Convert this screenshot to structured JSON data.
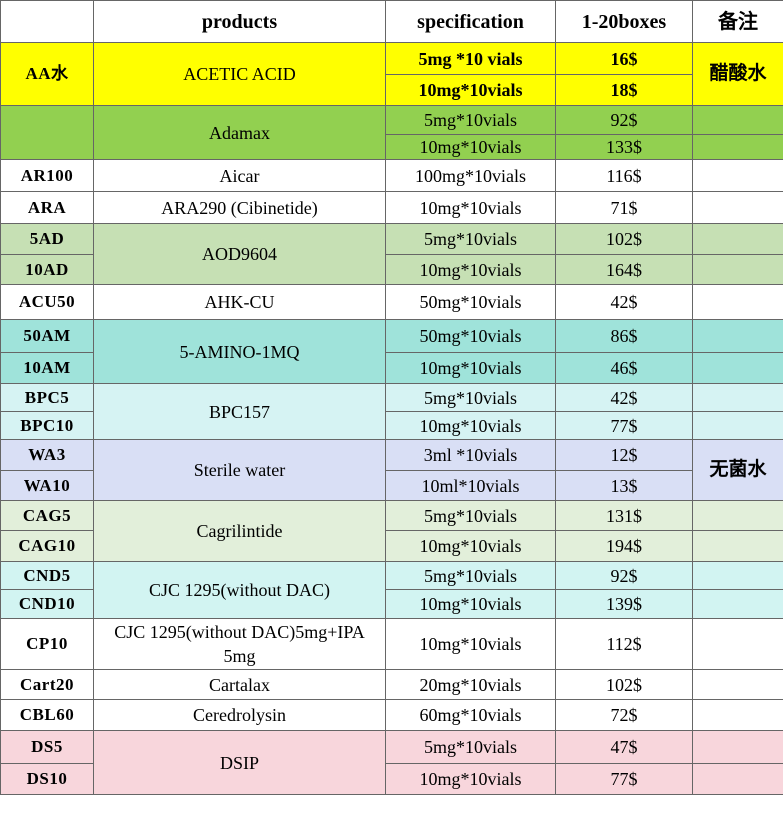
{
  "table": {
    "header": [
      "products",
      "specification",
      "1-20boxes",
      "备注"
    ],
    "groups": [
      {
        "codes": [
          "AA水"
        ],
        "name": "ACETIC  ACID",
        "specs": [
          "5mg *10 vials",
          "10mg*10vials"
        ],
        "prices": [
          "16$",
          "18$"
        ],
        "note": "醋酸水",
        "color": "#ffff00",
        "bold": true
      },
      {
        "name": "Adamax",
        "specs": [
          "5mg*10vials",
          "10mg*10vials"
        ],
        "prices": [
          "92$",
          "133$"
        ],
        "color": "#92d050"
      },
      {
        "codes": [
          "AR100"
        ],
        "name": "Aicar",
        "specs": [
          "100mg*10vials"
        ],
        "prices": [
          "116$"
        ],
        "color": "#ffffff"
      },
      {
        "codes": [
          "ARA"
        ],
        "name": "ARA290 (Cibinetide)",
        "specs": [
          "10mg*10vials"
        ],
        "prices": [
          "71$"
        ],
        "color": "#ffffff"
      },
      {
        "codes": [
          "5AD",
          "10AD"
        ],
        "name": "AOD9604",
        "specs": [
          "5mg*10vials",
          "10mg*10vials"
        ],
        "prices": [
          "102$",
          "164$"
        ],
        "color": "#c6e0b4"
      },
      {
        "codes": [
          "ACU50"
        ],
        "name": "AHK-CU",
        "specs": [
          "50mg*10vials"
        ],
        "prices": [
          "42$"
        ],
        "color": "#ffffff"
      },
      {
        "codes": [
          "50AM",
          "10AM"
        ],
        "name": "5-AMINO-1MQ",
        "specs": [
          "50mg*10vials",
          "10mg*10vials"
        ],
        "prices": [
          "86$",
          "46$"
        ],
        "color": "#9fe3da"
      },
      {
        "codes": [
          "BPC5",
          "BPC10"
        ],
        "name": "BPC157",
        "specs": [
          "5mg*10vials",
          "10mg*10vials"
        ],
        "prices": [
          "42$",
          "77$"
        ],
        "color": "#d6f3f3"
      },
      {
        "codes": [
          "WA3",
          "WA10"
        ],
        "name": "Sterile  water",
        "specs": [
          "3ml *10vials",
          "10ml*10vials"
        ],
        "prices": [
          "12$",
          "13$"
        ],
        "note": "无菌水",
        "color": "#d9dff5"
      },
      {
        "codes": [
          "CAG5",
          "CAG10"
        ],
        "name": "Cagrilintide",
        "specs": [
          "5mg*10vials",
          "10mg*10vials"
        ],
        "prices": [
          "131$",
          "194$"
        ],
        "color": "#e2efda"
      },
      {
        "codes": [
          "CND5",
          "CND10"
        ],
        "name": "CJC 1295(without DAC)",
        "specs": [
          "5mg*10vials",
          "10mg*10vials"
        ],
        "prices": [
          "92$",
          "139$"
        ],
        "color": "#d2f4f2"
      },
      {
        "codes": [
          "CP10"
        ],
        "name": "CJC 1295(without DAC)5mg+IPA 5mg",
        "specs": [
          "10mg*10vials"
        ],
        "prices": [
          "112$"
        ],
        "color": "#ffffff"
      },
      {
        "codes": [
          "Cart20"
        ],
        "name": "Cartalax",
        "specs": [
          "20mg*10vials"
        ],
        "prices": [
          "102$"
        ],
        "color": "#ffffff"
      },
      {
        "codes": [
          "CBL60"
        ],
        "name": "Ceredrolysin",
        "specs": [
          "60mg*10vials"
        ],
        "prices": [
          "72$"
        ],
        "color": "#ffffff"
      },
      {
        "codes": [
          "DS5",
          "DS10"
        ],
        "name": "DSIP",
        "specs": [
          "5mg*10vials",
          "10mg*10vials"
        ],
        "prices": [
          "47$",
          "77$"
        ],
        "color": "#f8d6dc"
      }
    ]
  }
}
